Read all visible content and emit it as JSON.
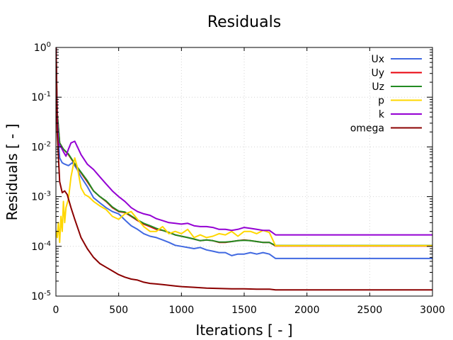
{
  "chart_data": {
    "type": "line",
    "title": "Residuals",
    "xlabel": "Iterations [ - ]",
    "ylabel": "Residuals [ - ]",
    "xlim": [
      0,
      3000
    ],
    "ylim": [
      1e-05,
      1
    ],
    "yscale": "log",
    "grid": true,
    "legend_position": "top-right",
    "x_ticks": [
      {
        "value": 0,
        "label": "0"
      },
      {
        "value": 500,
        "label": "500"
      },
      {
        "value": 1000,
        "label": "1000"
      },
      {
        "value": 1500,
        "label": "1500"
      },
      {
        "value": 2000,
        "label": "2000"
      },
      {
        "value": 2500,
        "label": "2500"
      },
      {
        "value": 3000,
        "label": "3000"
      }
    ],
    "y_ticks": [
      {
        "value": 1,
        "base": "10",
        "exp": "0"
      },
      {
        "value": 0.1,
        "base": "10",
        "exp": "-1"
      },
      {
        "value": 0.01,
        "base": "10",
        "exp": "-2"
      },
      {
        "value": 0.001,
        "base": "10",
        "exp": "-3"
      },
      {
        "value": 0.0001,
        "base": "10",
        "exp": "-4"
      },
      {
        "value": 1e-05,
        "base": "10",
        "exp": "-5"
      }
    ],
    "series": [
      {
        "name": "Ux",
        "color": "#4169e1",
        "x": [
          1,
          10,
          30,
          50,
          70,
          100,
          130,
          150,
          170,
          200,
          250,
          300,
          350,
          400,
          450,
          500,
          530,
          560,
          600,
          650,
          700,
          750,
          800,
          850,
          900,
          950,
          1000,
          1050,
          1100,
          1150,
          1200,
          1250,
          1300,
          1350,
          1400,
          1450,
          1500,
          1550,
          1600,
          1650,
          1700,
          1750,
          2000,
          2500,
          3000
        ],
        "y": [
          1.0,
          0.03,
          0.006,
          0.0048,
          0.0045,
          0.0042,
          0.0048,
          0.0042,
          0.0035,
          0.0025,
          0.0016,
          0.00095,
          0.00075,
          0.0006,
          0.0005,
          0.00045,
          0.00038,
          0.00032,
          0.00026,
          0.00022,
          0.00018,
          0.00016,
          0.00015,
          0.000135,
          0.00012,
          0.000105,
          0.0001,
          9.5e-05,
          9e-05,
          9.5e-05,
          8.5e-05,
          8e-05,
          7.5e-05,
          7.5e-05,
          6.5e-05,
          7e-05,
          7e-05,
          7.5e-05,
          7e-05,
          7.5e-05,
          7e-05,
          5.7e-05,
          5.7e-05,
          5.7e-05,
          5.7e-05
        ]
      },
      {
        "name": "Uy",
        "color": "#e8000b",
        "x": [
          1,
          10,
          30,
          60,
          100,
          150,
          200,
          250,
          300,
          350,
          400,
          450,
          500,
          550,
          600,
          650,
          700,
          750,
          800,
          850,
          900,
          950,
          1000,
          1050,
          1100,
          1150,
          1200,
          1250,
          1300,
          1350,
          1400,
          1450,
          1500,
          1550,
          1600,
          1650,
          1700,
          1750,
          2000,
          2500,
          3000
        ],
        "y": [
          1.0,
          0.05,
          0.012,
          0.009,
          0.007,
          0.0045,
          0.003,
          0.002,
          0.0013,
          0.001,
          0.0008,
          0.0006,
          0.0005,
          0.00048,
          0.0004,
          0.00033,
          0.00028,
          0.00025,
          0.00022,
          0.00021,
          0.00019,
          0.00017,
          0.00016,
          0.00015,
          0.00014,
          0.00013,
          0.000135,
          0.00013,
          0.00012,
          0.00012,
          0.000125,
          0.00013,
          0.000135,
          0.00013,
          0.000125,
          0.00012,
          0.00012,
          0.000102,
          0.000102,
          0.000102,
          0.000102
        ]
      },
      {
        "name": "Uz",
        "color": "#228b22",
        "x": [
          1,
          10,
          30,
          60,
          100,
          150,
          200,
          250,
          300,
          350,
          400,
          450,
          500,
          550,
          600,
          650,
          700,
          750,
          800,
          850,
          900,
          950,
          1000,
          1050,
          1100,
          1150,
          1200,
          1250,
          1300,
          1350,
          1400,
          1450,
          1500,
          1550,
          1600,
          1650,
          1700,
          1750,
          2000,
          2500,
          3000
        ],
        "y": [
          1.0,
          0.05,
          0.012,
          0.009,
          0.0072,
          0.0046,
          0.0031,
          0.0021,
          0.0013,
          0.001,
          0.00082,
          0.00062,
          0.00051,
          0.00049,
          0.00041,
          0.00034,
          0.00029,
          0.00026,
          0.00023,
          0.00021,
          0.00019,
          0.00017,
          0.00016,
          0.00015,
          0.00014,
          0.00013,
          0.000135,
          0.00013,
          0.000122,
          0.000122,
          0.000125,
          0.00013,
          0.000132,
          0.00013,
          0.000125,
          0.00012,
          0.00012,
          0.000104,
          0.000104,
          0.000104,
          0.000104
        ]
      },
      {
        "name": "p",
        "color": "#ffd700",
        "x": [
          1,
          10,
          20,
          30,
          40,
          50,
          60,
          70,
          80,
          100,
          120,
          150,
          170,
          200,
          230,
          260,
          300,
          350,
          400,
          450,
          500,
          550,
          600,
          650,
          700,
          750,
          800,
          850,
          900,
          950,
          1000,
          1050,
          1100,
          1150,
          1200,
          1250,
          1300,
          1350,
          1400,
          1450,
          1500,
          1550,
          1600,
          1650,
          1700,
          1750,
          2000,
          2500,
          3000
        ],
        "y": [
          0.0002,
          0.00015,
          0.0003,
          0.00012,
          0.0004,
          0.0002,
          0.0008,
          0.0003,
          0.0006,
          0.0009,
          0.0025,
          0.006,
          0.004,
          0.0015,
          0.0011,
          0.001,
          0.0008,
          0.00065,
          0.00055,
          0.0004,
          0.00035,
          0.00045,
          0.0005,
          0.00035,
          0.00025,
          0.0002,
          0.0002,
          0.00025,
          0.00018,
          0.0002,
          0.00018,
          0.00022,
          0.00015,
          0.00017,
          0.00015,
          0.00016,
          0.00018,
          0.00017,
          0.0002,
          0.00016,
          0.0002,
          0.0002,
          0.00018,
          0.00021,
          0.00019,
          0.000103,
          0.000103,
          0.000103,
          0.000103
        ]
      },
      {
        "name": "k",
        "color": "#9400d3",
        "x": [
          1,
          5,
          10,
          20,
          40,
          60,
          80,
          100,
          120,
          150,
          180,
          200,
          250,
          300,
          350,
          400,
          450,
          500,
          550,
          600,
          650,
          700,
          750,
          800,
          850,
          900,
          950,
          1000,
          1050,
          1100,
          1150,
          1200,
          1250,
          1300,
          1350,
          1400,
          1450,
          1500,
          1550,
          1600,
          1650,
          1700,
          1750,
          2000,
          2500,
          3000
        ],
        "y": [
          1.0,
          0.2,
          0.04,
          0.012,
          0.01,
          0.008,
          0.0065,
          0.009,
          0.012,
          0.013,
          0.009,
          0.007,
          0.0045,
          0.0035,
          0.0025,
          0.0018,
          0.0013,
          0.001,
          0.0008,
          0.0006,
          0.0005,
          0.00045,
          0.00042,
          0.00036,
          0.00033,
          0.0003,
          0.00029,
          0.00028,
          0.00029,
          0.00026,
          0.00025,
          0.00025,
          0.00024,
          0.00022,
          0.00022,
          0.00021,
          0.00022,
          0.00024,
          0.00023,
          0.00022,
          0.00021,
          0.00021,
          0.00017,
          0.00017,
          0.00017,
          0.00017
        ]
      },
      {
        "name": "omega",
        "color": "#8b0000",
        "x": [
          1,
          10,
          30,
          50,
          70,
          90,
          100,
          120,
          150,
          200,
          250,
          300,
          350,
          400,
          450,
          500,
          550,
          600,
          650,
          700,
          750,
          800,
          850,
          900,
          950,
          1000,
          1100,
          1200,
          1300,
          1400,
          1500,
          1600,
          1700,
          1750,
          2000,
          2500,
          3000
        ],
        "y": [
          1.0,
          0.02,
          0.002,
          0.0012,
          0.0013,
          0.0011,
          0.0009,
          0.0006,
          0.00035,
          0.00015,
          9e-05,
          6e-05,
          4.5e-05,
          3.8e-05,
          3.2e-05,
          2.7e-05,
          2.4e-05,
          2.2e-05,
          2.1e-05,
          1.9e-05,
          1.8e-05,
          1.75e-05,
          1.7e-05,
          1.65e-05,
          1.6e-05,
          1.55e-05,
          1.5e-05,
          1.45e-05,
          1.42e-05,
          1.4e-05,
          1.4e-05,
          1.38e-05,
          1.38e-05,
          1.33e-05,
          1.33e-05,
          1.33e-05,
          1.33e-05
        ]
      }
    ]
  }
}
